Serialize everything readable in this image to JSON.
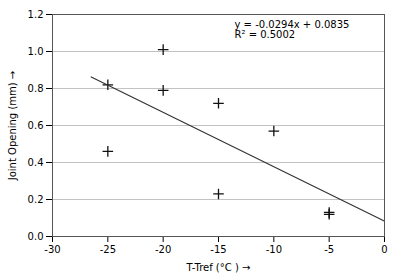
{
  "chart_data": {
    "type": "scatter",
    "xlabel": "T-Tref (°C )",
    "ylabel": "Joint Opening (mm)",
    "series": [
      {
        "type": "scatter",
        "marker": "plus",
        "color": "#111111",
        "x": [
          -25,
          -25,
          -20,
          -20,
          -15,
          -15,
          -10,
          -5,
          -5
        ],
        "values": [
          0.46,
          0.82,
          1.01,
          0.79,
          0.72,
          0.23,
          0.57,
          0.13,
          0.12
        ]
      },
      {
        "type": "line",
        "line_style": "solid",
        "color": "#333333",
        "x": [
          -26.5,
          0
        ],
        "values": [
          0.8626,
          0.0835
        ]
      }
    ],
    "annotations": [
      "y = -0.0294x + 0.0835",
      "R² = 0.5002"
    ],
    "xlim": [
      -30,
      0
    ],
    "ylim": [
      0,
      1.2
    ],
    "xticks": [
      -30,
      -25,
      -20,
      -15,
      -10,
      -5,
      0
    ],
    "yticks": [
      {
        "value": 0,
        "label": "0.0"
      },
      0.2,
      0.4,
      0.6,
      0.8,
      {
        "value": 1.0,
        "label": "1.0"
      },
      1.2
    ],
    "grid": "y"
  }
}
